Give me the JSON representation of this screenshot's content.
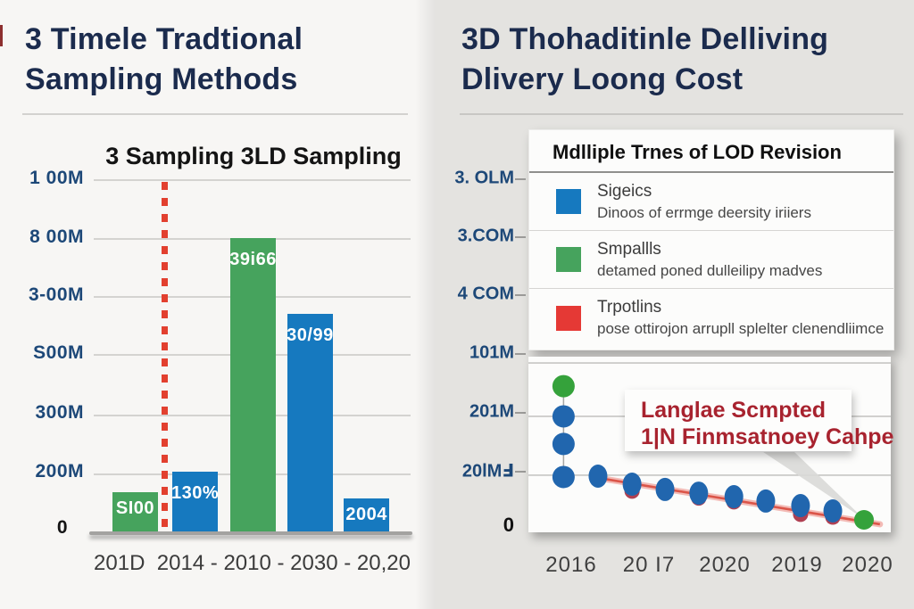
{
  "left_panel": {
    "title": "3 Timele Tradtional Sampling Methods",
    "x_axis_label": "201D  2014 - 2010 - 2030 - 20,20"
  },
  "right_panel": {
    "title_line1": "3D Thohaditinle Delliving",
    "title_line2": "Dlivery Loong Cost",
    "legend": {
      "title": "Mdlliple Trnes of LOD Revision",
      "items": [
        {
          "color": "#1679bf",
          "label": "Sigeics",
          "description": "Dinoos of errmge deersity iriiers"
        },
        {
          "color": "#46a35d",
          "label": "Smpallls",
          "description": "detamed poned dulleilipy madves"
        },
        {
          "color": "#e53935",
          "label": "Trpotlins",
          "description": "pose ottirojon arrupll splelter clenendliimce"
        }
      ]
    },
    "annotation": {
      "line1": "Langlae Scmpted",
      "line2": "1|N Finmsatnoey Cahpe"
    }
  },
  "colors": {
    "navy_title": "#1b2b4d",
    "green": "#46a35d",
    "blue": "#1679bf",
    "red_dotted": "#e2402f",
    "point_blue": "#2166ae",
    "point_green": "#35a23b",
    "point_red": "#b04052",
    "trend_red": "#d94b3e",
    "annotation_red": "#a8232f",
    "axis_label_blue": "#1d4878"
  },
  "chart_data": [
    {
      "type": "bar",
      "title": "3 Sampling 3LD Sampling",
      "y_labels": [
        "1 00M",
        "8 00M",
        "3-00M",
        "S00M",
        "300M",
        "200M",
        "0"
      ],
      "x_axis_text": "201D  2014 - 2010 - 2030 - 20,20",
      "gridlines_pct": [
        0,
        16.6,
        33,
        49.4,
        66.5,
        83.1
      ],
      "bar_width_pct": 14.4,
      "bars": [
        {
          "value_label": "SI00",
          "color": "green",
          "left_pct": 5.9,
          "height_pct": 11.6
        },
        {
          "value_label": "130%",
          "color": "blue",
          "left_pct": 24.8,
          "height_pct": 17.4
        },
        {
          "value_label": "39i66",
          "color": "green",
          "left_pct": 43.1,
          "height_pct": 83.4
        },
        {
          "value_label": "30/99",
          "color": "blue",
          "left_pct": 61.1,
          "height_pct": 62.0
        },
        {
          "value_label": "2004",
          "color": "blue",
          "left_pct": 78.9,
          "height_pct": 9.8
        }
      ],
      "red_dashed_line": {
        "left_pct": 22.3
      }
    },
    {
      "type": "scatter",
      "y_labels": [
        "3. OLM",
        "3.COM",
        "4 COM",
        "101M",
        "201M",
        "20lMℲ",
        "0"
      ],
      "x_labels": [
        "2016",
        "20 I7",
        "2020",
        "2019",
        "2020"
      ],
      "gridlines_pct": [
        3.6,
        34,
        67.5
      ],
      "column_points": [
        {
          "color": "point_green",
          "x_pct": 9.7,
          "y_pct": 16.8
        },
        {
          "color": "point_blue",
          "x_pct": 9.7,
          "y_pct": 34.0
        },
        {
          "color": "point_blue",
          "x_pct": 9.7,
          "y_pct": 49.7
        },
        {
          "color": "point_blue",
          "x_pct": 9.7,
          "y_pct": 68.5
        }
      ],
      "connector_line": {
        "x_pct": 9.7,
        "y1_pct": 16.8,
        "y2_pct": 68.5
      },
      "blue_series_pct": [
        [
          19.2,
          68.0
        ],
        [
          28.6,
          72.6
        ],
        [
          37.7,
          75.6
        ],
        [
          47.0,
          77.7
        ],
        [
          56.7,
          79.7
        ],
        [
          65.5,
          82.2
        ],
        [
          75.1,
          84.8
        ],
        [
          84.0,
          87.8
        ]
      ],
      "red_series_pct": [
        [
          28.6,
          76.6
        ],
        [
          47.0,
          80.5
        ],
        [
          56.7,
          82.7
        ],
        [
          75.1,
          89.8
        ],
        [
          84.0,
          91.4
        ]
      ],
      "end_point_green_pct": [
        92.6,
        92.9
      ],
      "trend_line_pct": {
        "from": [
          17.7,
          68.5
        ],
        "to": [
          97.0,
          95.4
        ]
      },
      "pointer_beam_pct": [
        [
          64.8,
          54.3
        ],
        [
          73.4,
          54.3
        ],
        [
          92.6,
          92.4
        ]
      ]
    }
  ]
}
